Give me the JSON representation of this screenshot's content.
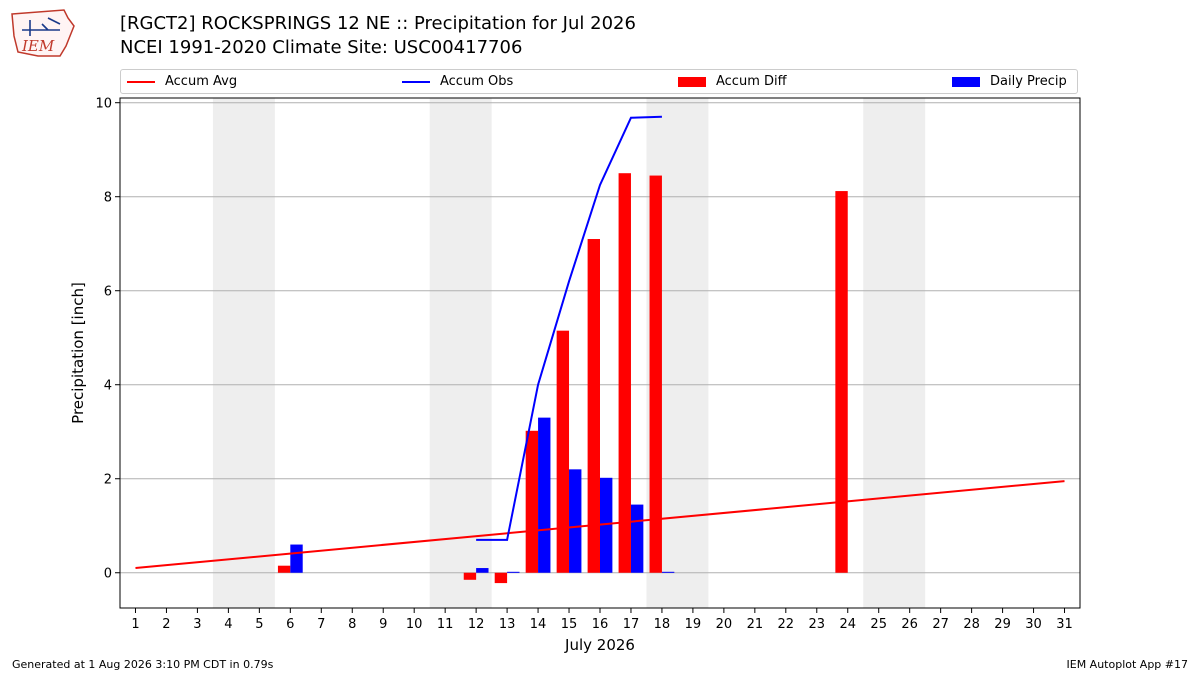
{
  "logo": {
    "text": "IEM"
  },
  "title_line1": "[RGCT2] ROCKSPRINGS 12 NE :: Precipitation for Jul 2026",
  "title_line2": "NCEI 1991-2020 Climate Site: USC00417706",
  "footer_left": "Generated at 1 Aug 2026 3:10 PM CDT in 0.79s",
  "footer_right": "IEM Autoplot App #17",
  "colors": {
    "accum_avg": "#ff0000",
    "accum_obs": "#0000ff",
    "accum_diff": "#ff0000",
    "daily_precip": "#0000ff",
    "weekend": "#eeeeee",
    "grid": "#b0b0b0"
  },
  "chart_data": {
    "type": "bar",
    "xlabel": "July 2026",
    "ylabel": "Precipitation [inch]",
    "ylim": [
      -0.75,
      10.1
    ],
    "xlim": [
      0.5,
      31.5
    ],
    "yticks": [
      0,
      2,
      4,
      6,
      8,
      10
    ],
    "y_tick_labels": [
      "0",
      "2",
      "4",
      "6",
      "8",
      "10"
    ],
    "x_tick_labels": [
      "1",
      "2",
      "3",
      "4",
      "5",
      "6",
      "7",
      "8",
      "9",
      "10",
      "11",
      "12",
      "13",
      "14",
      "15",
      "16",
      "17",
      "18",
      "19",
      "20",
      "21",
      "22",
      "23",
      "24",
      "25",
      "26",
      "27",
      "28",
      "29",
      "30",
      "31"
    ],
    "grid": true,
    "legend_position": "top",
    "weekend_shading": [
      [
        4,
        5
      ],
      [
        11,
        12
      ],
      [
        18,
        19
      ],
      [
        25,
        26
      ]
    ],
    "series": [
      {
        "name": "Accum Avg",
        "type": "line",
        "x": [
          1,
          31
        ],
        "values": [
          0.1,
          1.95
        ]
      },
      {
        "name": "Accum Obs",
        "type": "line",
        "x": [
          12,
          13,
          14,
          15,
          16,
          17,
          18
        ],
        "values": [
          0.7,
          0.7,
          4.0,
          6.2,
          8.25,
          9.68,
          9.7
        ]
      },
      {
        "name": "Accum Diff",
        "type": "bar",
        "x": [
          6,
          12,
          13,
          14,
          15,
          16,
          17,
          18,
          24
        ],
        "values": [
          0.15,
          -0.15,
          -0.22,
          3.02,
          5.15,
          7.1,
          8.5,
          8.45,
          8.12
        ]
      },
      {
        "name": "Daily Precip",
        "type": "bar",
        "x": [
          6,
          12,
          13,
          14,
          15,
          16,
          17,
          18
        ],
        "values": [
          0.6,
          0.1,
          0.02,
          3.3,
          2.2,
          2.02,
          1.45,
          0.02
        ]
      }
    ]
  }
}
